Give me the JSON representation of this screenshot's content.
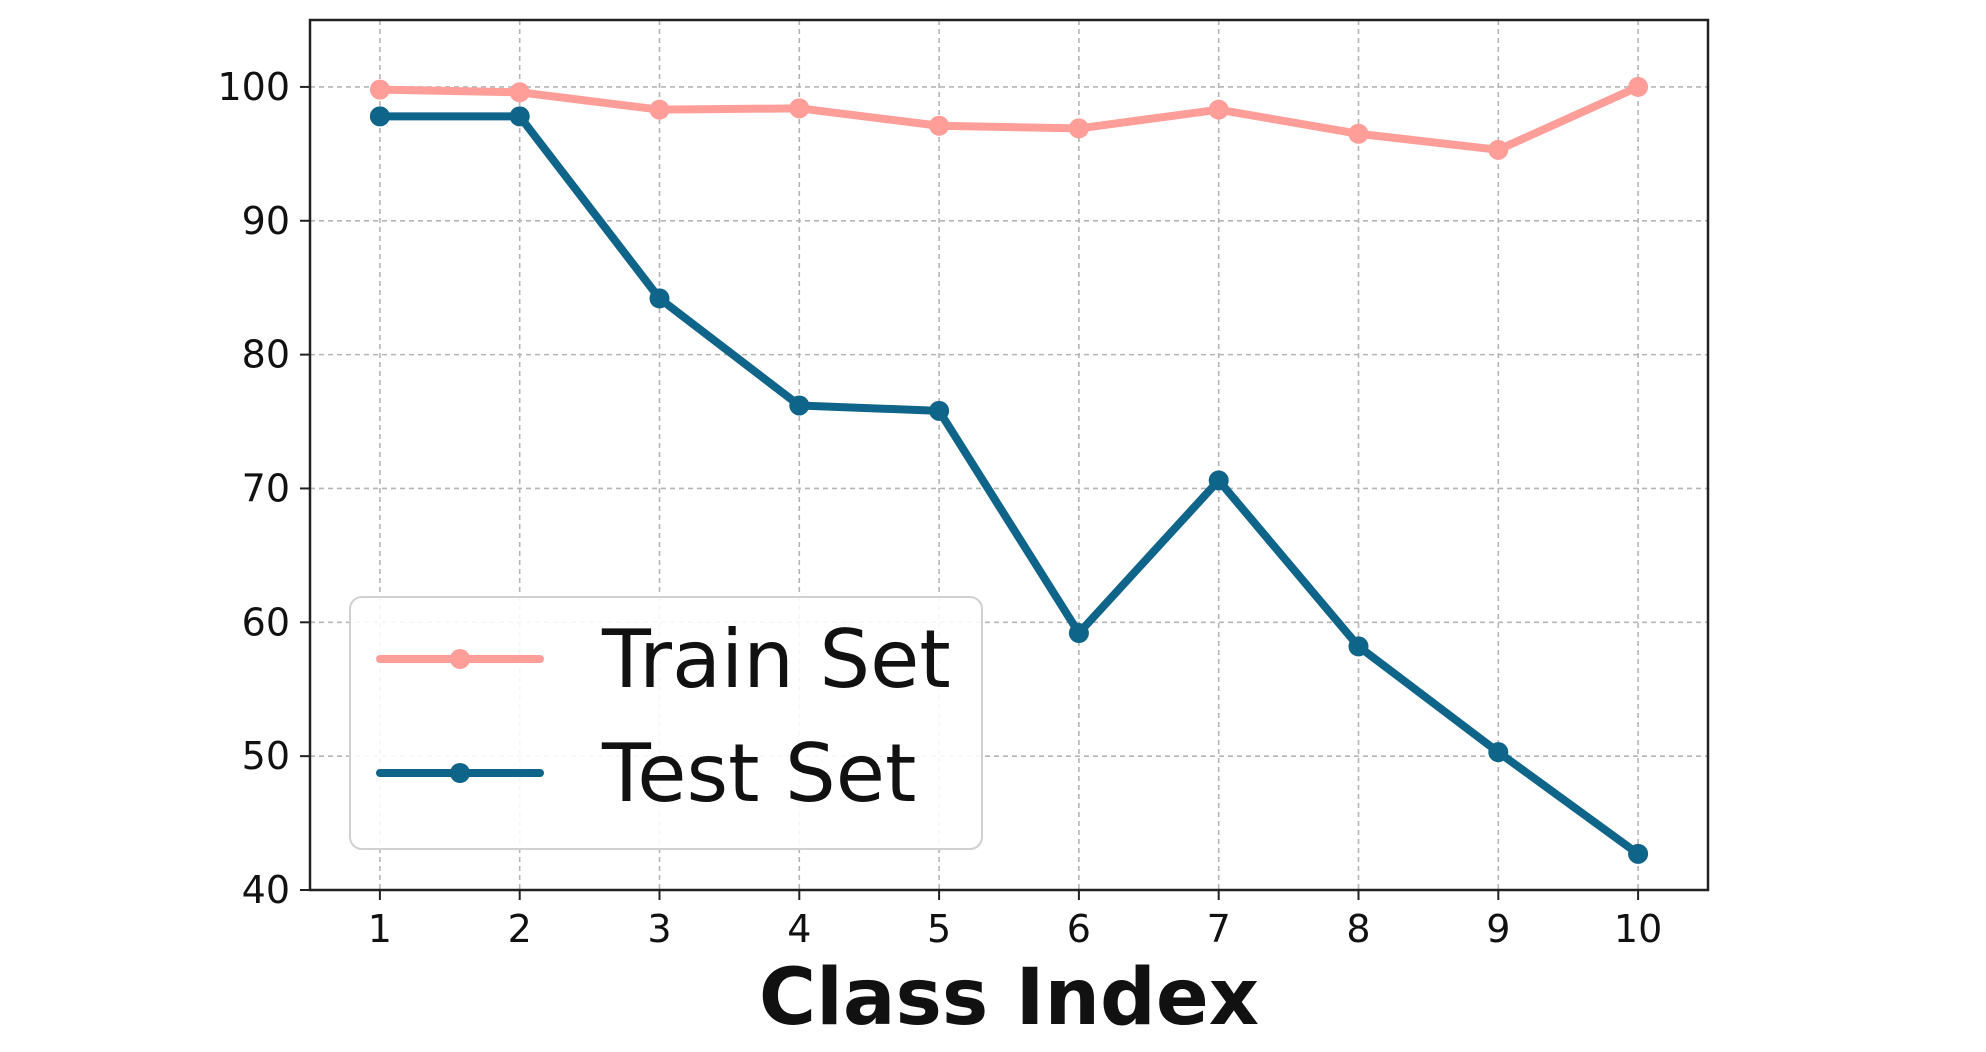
{
  "chart_data": {
    "type": "line",
    "title": "",
    "xlabel": "Class Index",
    "ylabel": "",
    "x": [
      1,
      2,
      3,
      4,
      5,
      6,
      7,
      8,
      9,
      10
    ],
    "xticks": [
      "1",
      "2",
      "3",
      "4",
      "5",
      "6",
      "7",
      "8",
      "9",
      "10"
    ],
    "yticks": [
      40,
      50,
      60,
      70,
      80,
      90,
      100
    ],
    "xlim": [
      0.5,
      10.5
    ],
    "ylim": [
      40,
      105
    ],
    "grid": true,
    "legend_position": "lower-left",
    "series": [
      {
        "name": "Train Set",
        "color": "#FF9E99",
        "marker": "circle",
        "values": [
          99.8,
          99.6,
          98.3,
          98.4,
          97.1,
          96.9,
          98.3,
          96.5,
          95.3,
          100.0
        ]
      },
      {
        "name": "Test Set",
        "color": "#0F6489",
        "marker": "circle",
        "values": [
          97.8,
          97.8,
          84.2,
          76.2,
          75.8,
          59.2,
          70.6,
          58.2,
          50.3,
          42.7
        ]
      }
    ]
  }
}
